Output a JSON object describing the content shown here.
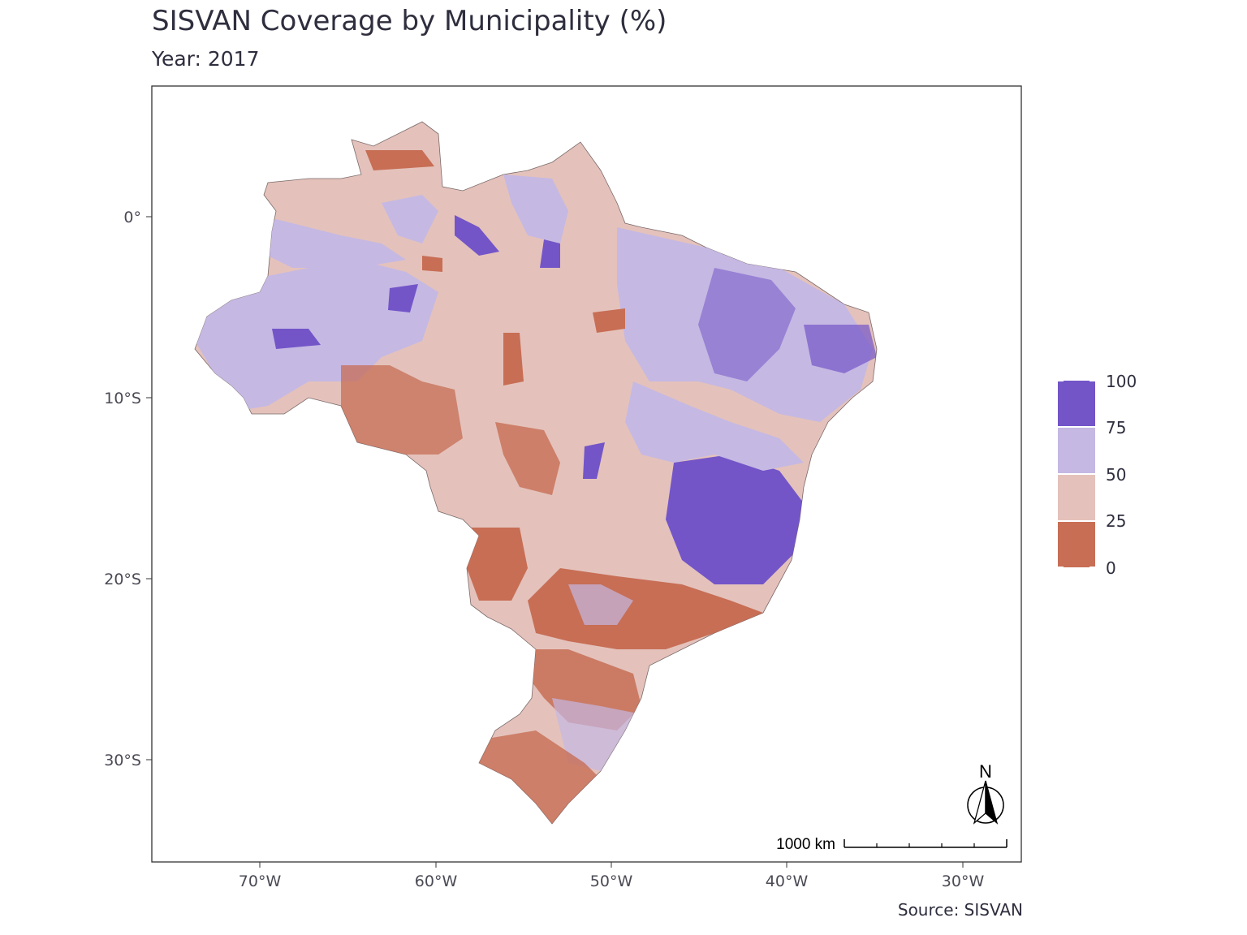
{
  "title": "SISVAN Coverage by Municipality (%)",
  "subtitle": "Year: 2017",
  "caption": "Source: SISVAN",
  "axes": {
    "y_ticks": [
      "0°",
      "10°S",
      "20°S",
      "30°S"
    ],
    "x_ticks": [
      "70°W",
      "60°W",
      "50°W",
      "40°W",
      "30°W"
    ]
  },
  "legend": {
    "labels": [
      "100",
      "75",
      "50",
      "25",
      "0"
    ],
    "bins": [
      {
        "range": "75-100",
        "color": "#7355c8"
      },
      {
        "range": "50-75",
        "color": "#c5b8e3"
      },
      {
        "range": "25-50",
        "color": "#e4c2bb"
      },
      {
        "range": "0-25",
        "color": "#c76e55"
      }
    ]
  },
  "scale_bar": {
    "label": "1000 km"
  },
  "north_arrow": {
    "label": "N"
  },
  "colors": {
    "high": "#7355c8",
    "mid_high": "#c5b8e3",
    "mid_low": "#e4c2bb",
    "low": "#c76e55",
    "panel_border": "#333333"
  }
}
